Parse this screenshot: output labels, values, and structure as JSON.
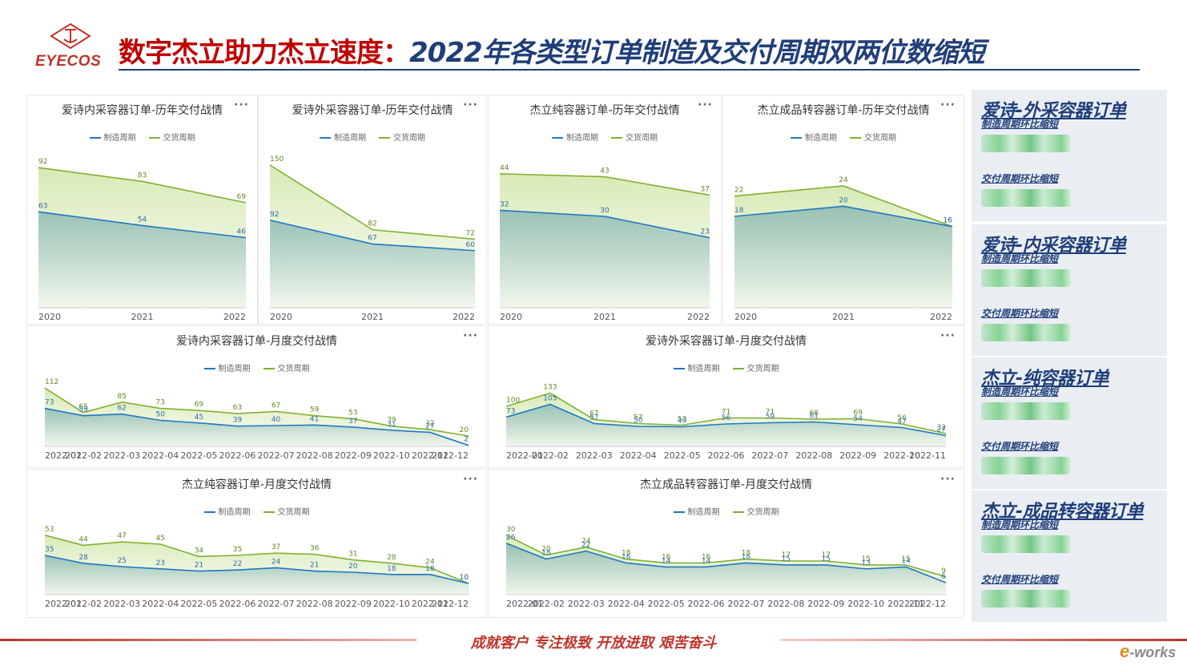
{
  "header": {
    "brand": "EYECOS",
    "title_red": "数字杰立助力杰立速度：",
    "title_blue": "2022年各类型订单制造及交付周期双两位数缩短"
  },
  "legend": {
    "series1": "制造周期",
    "series2": "交货周期"
  },
  "more_icon": "···",
  "colors": {
    "blue": "#1f77c4",
    "green": "#7fb12e",
    "red": "#c0332b",
    "navy": "#1f3e79"
  },
  "chart_data": [
    {
      "type": "area",
      "title": "爱诗内采容器订单-历年交付战情",
      "categories": [
        "2020",
        "2021",
        "2022"
      ],
      "series": [
        {
          "name": "制造周期",
          "values": [
            63,
            54,
            46
          ]
        },
        {
          "name": "交货周期",
          "values": [
            92,
            83,
            69
          ]
        }
      ],
      "ylim": [
        0,
        100
      ]
    },
    {
      "type": "area",
      "title": "爱诗外采容器订单-历年交付战情",
      "categories": [
        "2020",
        "2021",
        "2022"
      ],
      "series": [
        {
          "name": "制造周期",
          "values": [
            92,
            67,
            60
          ]
        },
        {
          "name": "交货周期",
          "values": [
            150,
            82,
            72
          ]
        }
      ],
      "ylim": [
        0,
        160
      ]
    },
    {
      "type": "area",
      "title": "杰立纯容器订单-历年交付战情",
      "categories": [
        "2020",
        "2021",
        "2022"
      ],
      "series": [
        {
          "name": "制造周期",
          "values": [
            32,
            30,
            23
          ]
        },
        {
          "name": "交货周期",
          "values": [
            44,
            43,
            37
          ]
        }
      ],
      "ylim": [
        0,
        50
      ]
    },
    {
      "type": "area",
      "title": "杰立成品转容器订单-历年交付战情",
      "categories": [
        "2020",
        "2021",
        "2022"
      ],
      "series": [
        {
          "name": "制造周期",
          "values": [
            18,
            20,
            16
          ]
        },
        {
          "name": "交货周期",
          "values": [
            22,
            24,
            16
          ]
        }
      ],
      "ylim": [
        0,
        30
      ]
    },
    {
      "type": "area",
      "title": "爱诗内采容器订单-月度交付战情",
      "categories": [
        "2022-01",
        "2022-02",
        "2022-03",
        "2022-04",
        "2022-05",
        "2022-06",
        "2022-07",
        "2022-08",
        "2022-09",
        "2022-10",
        "2022-11",
        "2022-12"
      ],
      "series": [
        {
          "name": "制造周期",
          "values": [
            73,
            59,
            62,
            50,
            45,
            39,
            40,
            41,
            37,
            31,
            27,
            2
          ]
        },
        {
          "name": "交货周期",
          "values": [
            112,
            65,
            85,
            73,
            69,
            63,
            67,
            59,
            53,
            39,
            32,
            20
          ]
        }
      ],
      "ylim": [
        0,
        120
      ]
    },
    {
      "type": "area",
      "title": "爱诗外采容器订单-月度交付战情",
      "categories": [
        "2022-01",
        "2022-02",
        "2022-03",
        "2022-04",
        "2022-05",
        "2022-06",
        "2022-07",
        "2022-08",
        "2022-09",
        "2022-10",
        "2022-11"
      ],
      "series": [
        {
          "name": "制造周期",
          "values": [
            73,
            105,
            57,
            50,
            49,
            56,
            59,
            61,
            54,
            47,
            27
          ]
        },
        {
          "name": "交货周期",
          "values": [
            100,
            133,
            67,
            57,
            53,
            71,
            71,
            68,
            69,
            56,
            32
          ]
        }
      ],
      "ylim": [
        0,
        140
      ]
    },
    {
      "type": "area",
      "title": "杰立纯容器订单-月度交付战情",
      "categories": [
        "2022-01",
        "2022-02",
        "2022-03",
        "2022-04",
        "2022-05",
        "2022-06",
        "2022-07",
        "2022-08",
        "2022-09",
        "2022-10",
        "2022-11",
        "2022-12"
      ],
      "series": [
        {
          "name": "制造周期",
          "values": [
            35,
            28,
            25,
            23,
            21,
            22,
            24,
            21,
            20,
            18,
            18,
            10
          ]
        },
        {
          "name": "交货周期",
          "values": [
            53,
            44,
            47,
            45,
            34,
            35,
            37,
            36,
            31,
            28,
            24,
            10
          ]
        }
      ],
      "ylim": [
        0,
        60
      ]
    },
    {
      "type": "area",
      "title": "杰立成品转容器订单-月度交付战情",
      "categories": [
        "2022-01",
        "2022-02",
        "2022-03",
        "2022-04",
        "2022-05",
        "2022-06",
        "2022-07",
        "2022-08",
        "2022-09",
        "2022-10",
        "2022-11",
        "2022-12"
      ],
      "series": [
        {
          "name": "制造周期",
          "values": [
            26,
            18,
            22,
            16,
            14,
            14,
            16,
            15,
            15,
            13,
            14,
            6
          ]
        },
        {
          "name": "交货周期",
          "values": [
            30,
            20,
            24,
            18,
            16,
            16,
            18,
            17,
            17,
            15,
            15,
            9
          ]
        }
      ],
      "ylim": [
        0,
        34
      ]
    }
  ],
  "sidebar": {
    "cards": [
      {
        "title": "爱诗-外采容器订单",
        "metric1": "制造周期环比缩短",
        "metric2": "交付周期环比缩短"
      },
      {
        "title": "爱诗-内采容器订单",
        "metric1": "制造周期环比缩短",
        "metric2": "交付周期环比缩短"
      },
      {
        "title": "杰立-纯容器订单",
        "metric1": "制造周期环比缩短",
        "metric2": "交付周期环比缩短"
      },
      {
        "title": "杰立-成品转容器订单",
        "metric1": "制造周期环比缩短",
        "metric2": "交付周期环比缩短"
      }
    ]
  },
  "footer": {
    "slogan": "成就客户 专注极致 开放进取 艰苦奋斗",
    "watermark_e": "e",
    "watermark_rest": "-works"
  }
}
